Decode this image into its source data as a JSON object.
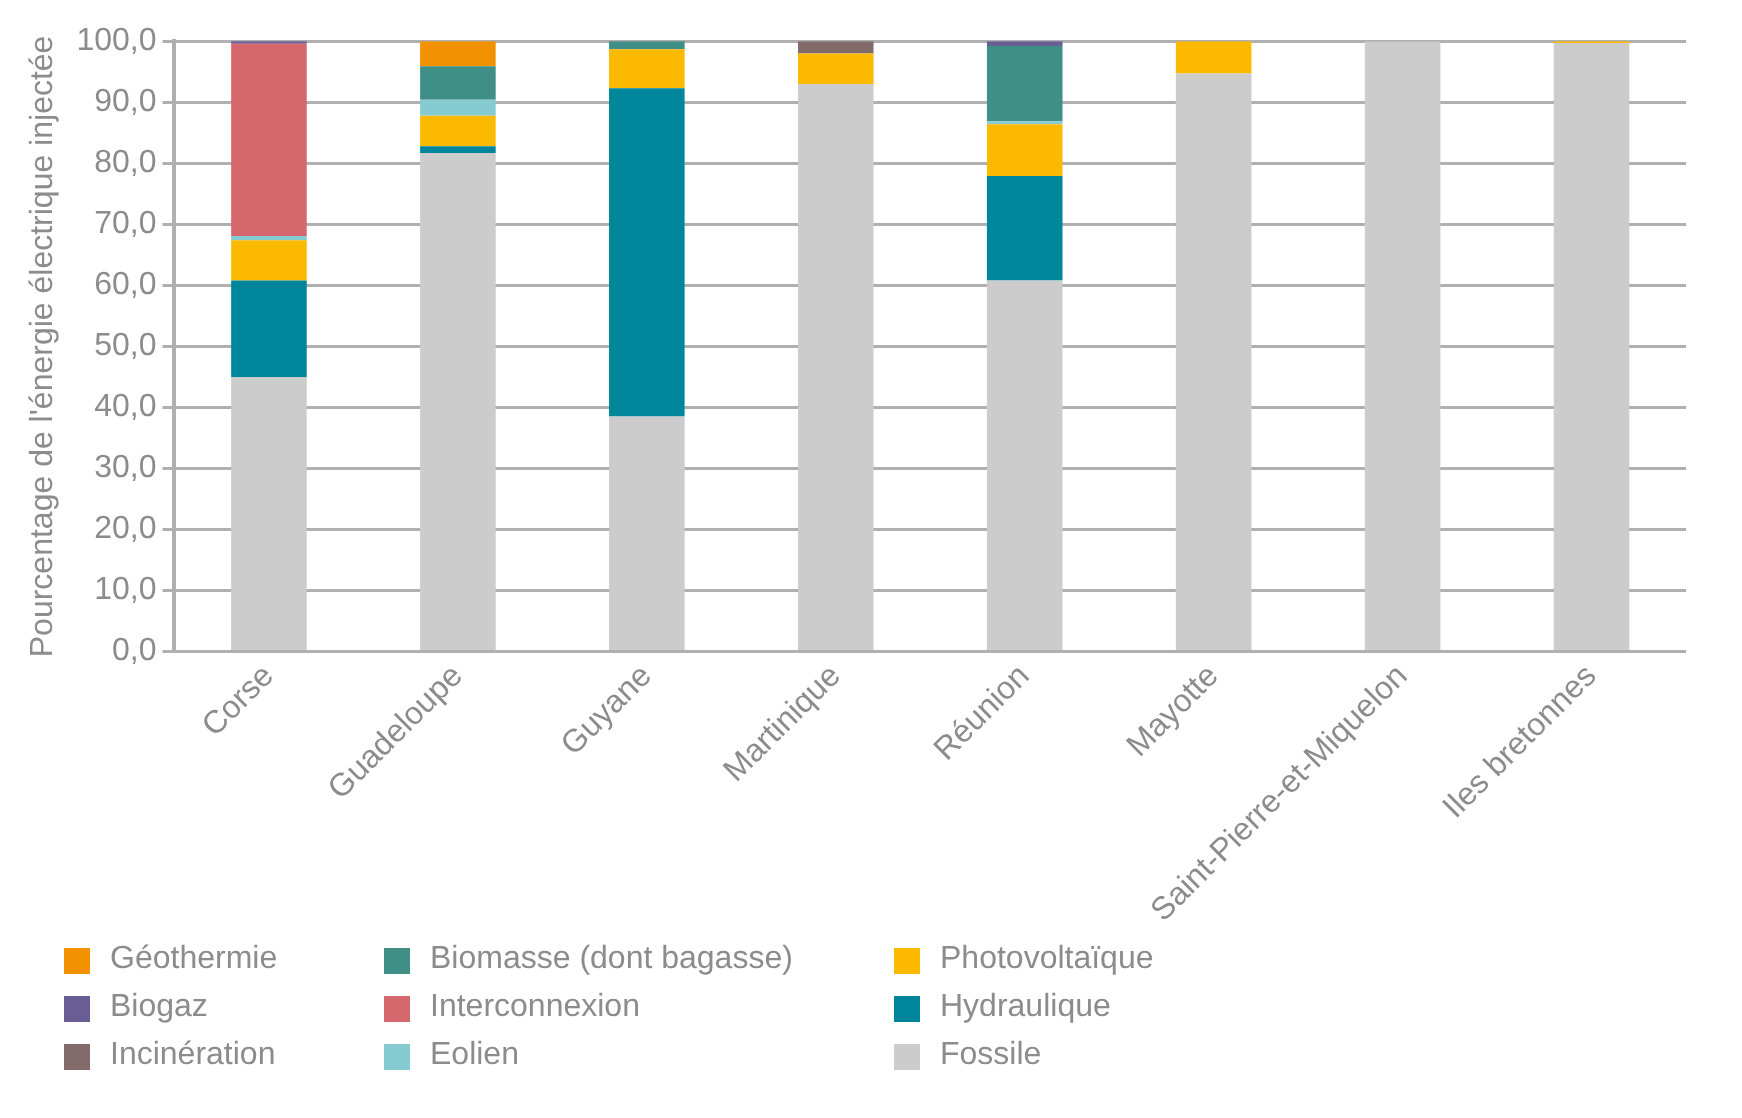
{
  "chart_data": {
    "type": "bar",
    "stacked": true,
    "ylabel": "Pourcentage de l'énergie électrique injectée",
    "categories": [
      "Corse",
      "Guadeloupe",
      "Guyane",
      "Martinique",
      "Réunion",
      "Mayotte",
      "Saint-Pierre-et-Miquelon",
      "Iles bretonnes"
    ],
    "series": [
      {
        "name": "Fossile",
        "color": "#cccccc",
        "values": [
          45.0,
          81.7,
          38.5,
          93.0,
          60.8,
          94.7,
          100.0,
          99.7
        ]
      },
      {
        "name": "Hydraulique",
        "color": "#00869a",
        "values": [
          15.8,
          1.1,
          53.8,
          null,
          17.1,
          null,
          null,
          null
        ]
      },
      {
        "name": "Photovoltaïque",
        "color": "#fbb900",
        "values": [
          6.6,
          5.0,
          6.4,
          5.0,
          8.5,
          5.3,
          null,
          0.3
        ]
      },
      {
        "name": "Eolien",
        "color": "#86cbd2",
        "values": [
          0.7,
          2.6,
          null,
          null,
          0.5,
          null,
          null,
          null
        ]
      },
      {
        "name": "Interconnexion",
        "color": "#d4686c",
        "values": [
          31.5,
          null,
          null,
          null,
          null,
          null,
          null,
          null
        ]
      },
      {
        "name": "Biomasse (dont bagasse)",
        "color": "#3f8f86",
        "values": [
          null,
          5.5,
          1.3,
          null,
          12.3,
          null,
          null,
          null
        ]
      },
      {
        "name": "Incinération",
        "color": "#836b6b",
        "values": [
          null,
          null,
          null,
          2.0,
          null,
          null,
          null,
          null
        ]
      },
      {
        "name": "Biogaz",
        "color": "#6a5d96",
        "values": [
          0.4,
          null,
          null,
          null,
          0.8,
          null,
          null,
          null
        ]
      },
      {
        "name": "Géothermie",
        "color": "#f39200",
        "values": [
          null,
          4.1,
          null,
          null,
          null,
          null,
          null,
          null
        ]
      }
    ],
    "ylim": [
      0,
      100
    ],
    "yticks": [
      {
        "value": 0,
        "label": "0,0"
      },
      {
        "value": 10,
        "label": "10,0"
      },
      {
        "value": 20,
        "label": "20,0"
      },
      {
        "value": 30,
        "label": "30,0"
      },
      {
        "value": 40,
        "label": "40,0"
      },
      {
        "value": 50,
        "label": "50,0"
      },
      {
        "value": 60,
        "label": "60,0"
      },
      {
        "value": 70,
        "label": "70,0"
      },
      {
        "value": 80,
        "label": "80,0"
      },
      {
        "value": 90,
        "label": "90,0"
      },
      {
        "value": 100,
        "label": "100,0"
      }
    ],
    "grid": "y",
    "legend": "bottom left"
  }
}
